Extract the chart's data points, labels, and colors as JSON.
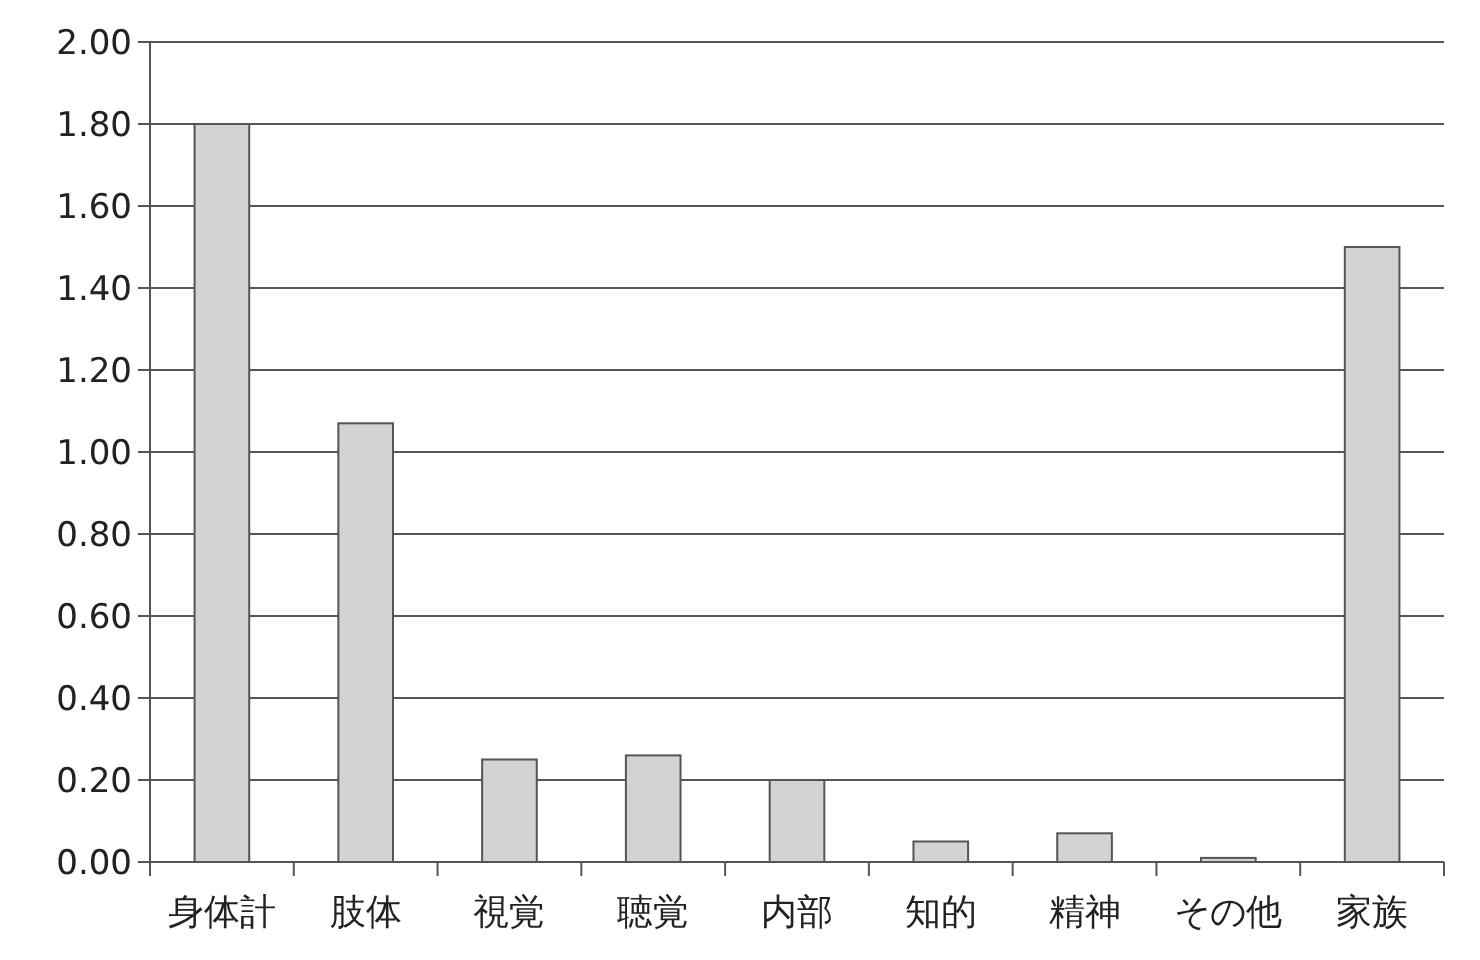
{
  "chart_data": {
    "type": "bar",
    "categories": [
      "身体計",
      "肢体",
      "視覚",
      "聴覚",
      "内部",
      "知的",
      "精神",
      "その他",
      "家族"
    ],
    "values": [
      1.8,
      1.07,
      0.25,
      0.26,
      0.2,
      0.05,
      0.07,
      0.01,
      1.5
    ],
    "color": "#d3d3d3",
    "ylim": [
      0,
      2.0
    ],
    "yticks": [
      {
        "value": 0,
        "label": "0.00"
      },
      {
        "value": 0.2,
        "label": "0.20"
      },
      {
        "value": 0.4,
        "label": "0.40"
      },
      {
        "value": 0.6,
        "label": "0.60"
      },
      {
        "value": 0.8,
        "label": "0.80"
      },
      {
        "value": 1.0,
        "label": "1.00"
      },
      {
        "value": 1.2,
        "label": "1.20"
      },
      {
        "value": 1.4,
        "label": "1.40"
      },
      {
        "value": 1.6,
        "label": "1.60"
      },
      {
        "value": 1.8,
        "label": "1.80"
      },
      {
        "value": 2.0,
        "label": "2.00"
      }
    ],
    "grid": "y"
  }
}
